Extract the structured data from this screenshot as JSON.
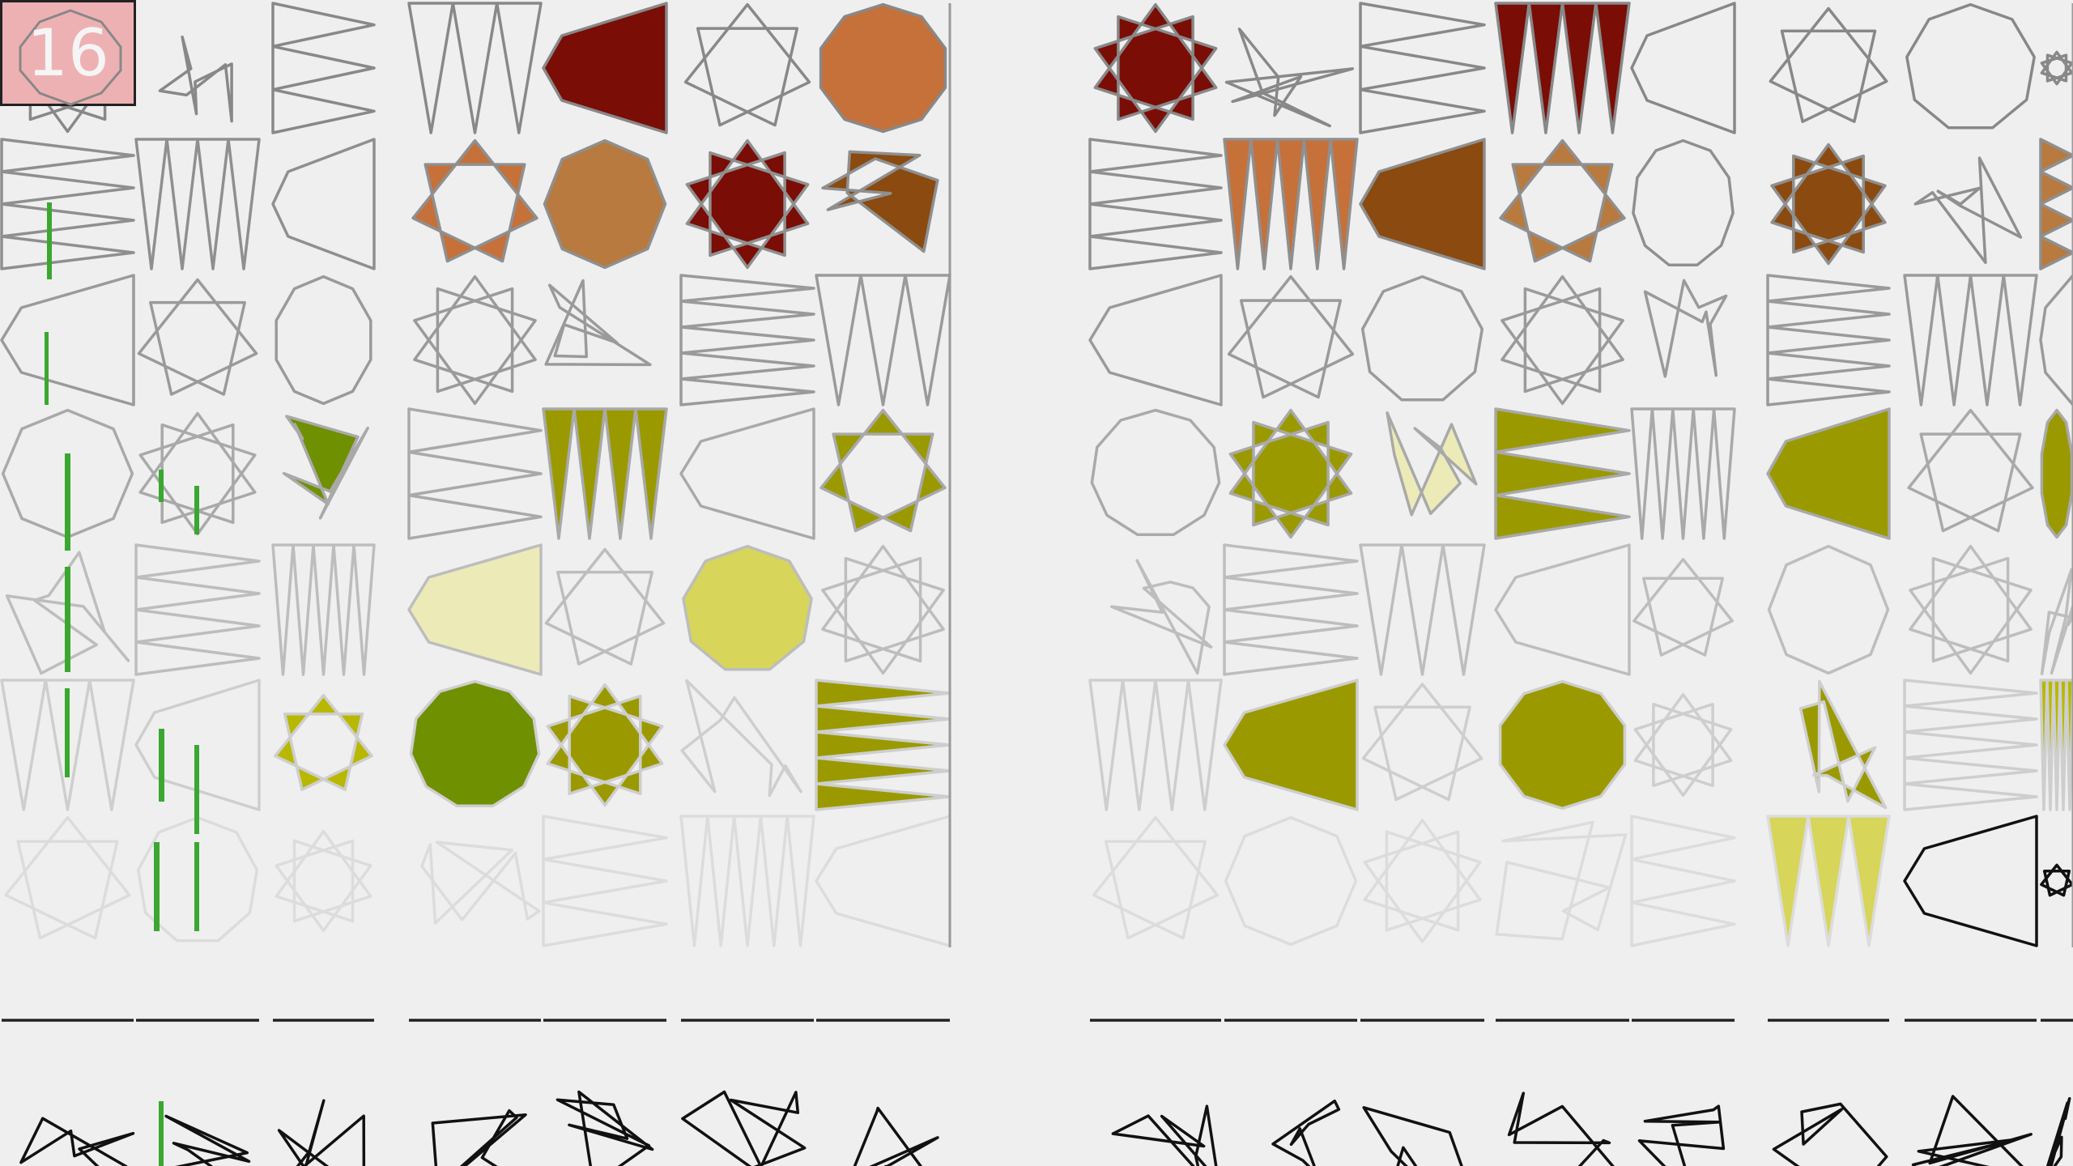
{
  "level": {
    "number": "16",
    "badge_color": "#eeb1b3"
  },
  "palette": {
    "background": "#efefef",
    "stroke_levels": [
      "#888888",
      "#8f8f8f",
      "#9a9a9a",
      "#a9a9a9",
      "#bdbdbd",
      "#cecece",
      "#dcdcdc"
    ],
    "black": "#111111",
    "fills": {
      "maroon": "#7a0d06",
      "rust": "#c6703a",
      "brown": "#8a4a10",
      "tan": "#b87a3e",
      "green": "#3aa830",
      "olive": "#9a9a00",
      "olive_green": "#6f9000",
      "pale_yellow": "#ecebb8",
      "yellow": "#d7d55a",
      "lime": "#b8b800"
    }
  },
  "groups": [
    {
      "name": "left",
      "columns": 7
    },
    {
      "name": "right",
      "columns": 7
    }
  ],
  "rows": 7,
  "bottom_row": {
    "shapes": 14,
    "style": "black-outline"
  }
}
